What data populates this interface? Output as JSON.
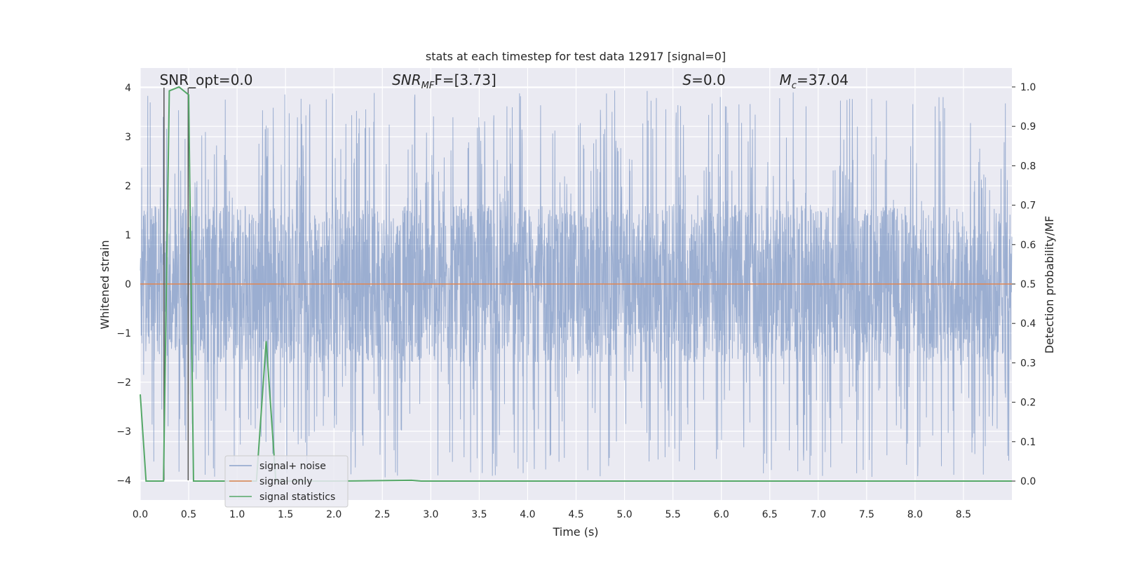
{
  "chart_data": {
    "type": "line",
    "title": "stats at each timestep for test data 12917 [signal=0]",
    "xlabel": "Time (s)",
    "ylabel": "Whitened strain",
    "y2label": "Detection probability/MF",
    "xlim": [
      0.0,
      9.0
    ],
    "ylim": [
      -4.4,
      4.4
    ],
    "y2lim": [
      -0.048,
      1.048
    ],
    "xticks": [
      0.0,
      0.5,
      1.0,
      1.5,
      2.0,
      2.5,
      3.0,
      3.5,
      4.0,
      4.5,
      5.0,
      5.5,
      6.0,
      6.5,
      7.0,
      7.5,
      8.0,
      8.5
    ],
    "xtick_labels": [
      "0.0",
      "0.5",
      "1.0",
      "1.5",
      "2.0",
      "2.5",
      "3.0",
      "3.5",
      "4.0",
      "4.5",
      "5.0",
      "5.5",
      "6.0",
      "6.5",
      "7.0",
      "7.5",
      "8.0",
      "8.5"
    ],
    "yticks": [
      4,
      3,
      2,
      1,
      0,
      -1,
      -2,
      -3,
      -4
    ],
    "ytick_labels": [
      "4",
      "3",
      "2",
      "1",
      "0",
      "−1",
      "−2",
      "−3",
      "−4"
    ],
    "y2ticks": [
      1.0,
      0.9,
      0.8,
      0.7,
      0.6,
      0.5,
      0.4,
      0.3,
      0.2,
      0.1,
      0.0
    ],
    "y2tick_labels": [
      "1.0",
      "0.9",
      "0.8",
      "0.7",
      "0.6",
      "0.5",
      "0.4",
      "0.3",
      "0.2",
      "0.1",
      "0.0"
    ],
    "annotations": {
      "snr_opt": {
        "text": "SNR_opt=0.0",
        "x": 0.2
      },
      "snr_mf": {
        "base": "SNR",
        "sub": "MF",
        "rest": "F=[3.73]",
        "x": 2.6
      },
      "s_stat": {
        "base": "S",
        "rest": "=0.0",
        "x": 5.6
      },
      "mc": {
        "base": "M",
        "sub": "c",
        "rest": "=37.04",
        "x": 6.6
      },
      "y": 4.1
    },
    "vlines": [
      {
        "x": 0.245,
        "ymin": -4.0,
        "ymax": 4.0
      },
      {
        "x": 0.495,
        "ymin": -4.0,
        "ymax": 4.0
      }
    ],
    "series": [
      {
        "name": "signal+ noise",
        "color": "#4c72b0",
        "kind": "noise",
        "duration": 9.0,
        "samples": 3600,
        "core_amplitude": 1.6,
        "peak_max": 3.95,
        "trough_min": -4.05
      },
      {
        "name": "signal only",
        "color": "#dd8452",
        "x": [
          0.0,
          9.0
        ],
        "y": [
          0.0,
          0.0
        ]
      },
      {
        "name": "signal statistics",
        "color": "#55a868",
        "axis": "right",
        "x": [
          0.0,
          0.06,
          0.24,
          0.3,
          0.4,
          0.5,
          0.55,
          1.0,
          1.2,
          1.3,
          1.4,
          1.5,
          2.0,
          2.8,
          2.9,
          9.0
        ],
        "y": [
          0.22,
          0.0,
          0.0,
          0.99,
          1.0,
          0.98,
          0.0,
          0.0,
          0.0,
          0.355,
          0.0,
          0.0,
          0.0,
          0.002,
          0.0,
          0.0
        ]
      }
    ],
    "legend": {
      "placement": "lower-left",
      "entries": [
        "signal+ noise",
        "signal only",
        "signal statistics"
      ]
    },
    "grid": true,
    "colors": {
      "background": "#eaeaf2",
      "grid": "#ffffff",
      "vline": "#555555"
    }
  }
}
